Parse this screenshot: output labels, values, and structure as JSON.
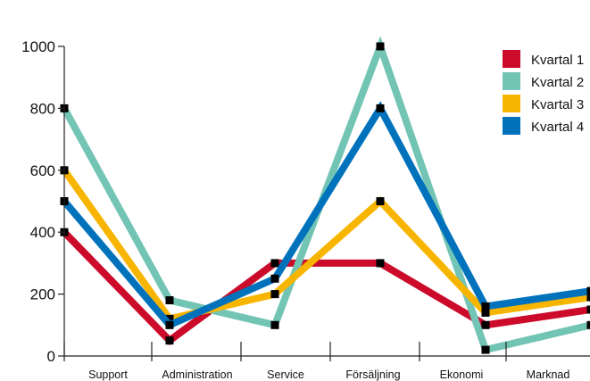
{
  "chart_data": {
    "type": "line",
    "title": "",
    "xlabel": "",
    "ylabel": "",
    "categories": [
      "Support",
      "Administration",
      "Service",
      "Försäljning",
      "Ekonomi",
      "Marknad"
    ],
    "ylim": [
      0,
      1000
    ],
    "yticks": [
      0,
      200,
      400,
      600,
      800,
      1000
    ],
    "grid": false,
    "legend_position": "top-right",
    "series": [
      {
        "name": "Kvartal 1",
        "color": "#cc0a2a",
        "values": [
          400,
          50,
          300,
          300,
          100,
          150
        ]
      },
      {
        "name": "Kvartal 2",
        "color": "#72c4b4",
        "values": [
          800,
          180,
          100,
          1000,
          20,
          100
        ]
      },
      {
        "name": "Kvartal 3",
        "color": "#f8b500",
        "values": [
          600,
          120,
          200,
          500,
          140,
          190
        ]
      },
      {
        "name": "Kvartal 4",
        "color": "#0072bc",
        "values": [
          500,
          100,
          250,
          800,
          160,
          210
        ]
      }
    ]
  }
}
